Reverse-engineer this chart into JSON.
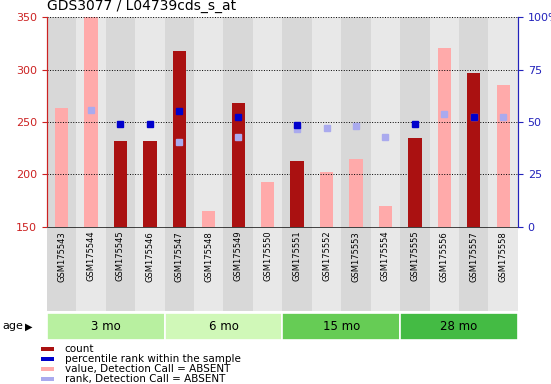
{
  "title": "GDS3077 / L04739cds_s_at",
  "samples": [
    "GSM175543",
    "GSM175544",
    "GSM175545",
    "GSM175546",
    "GSM175547",
    "GSM175548",
    "GSM175549",
    "GSM175550",
    "GSM175551",
    "GSM175552",
    "GSM175553",
    "GSM175554",
    "GSM175555",
    "GSM175556",
    "GSM175557",
    "GSM175558"
  ],
  "count": [
    null,
    null,
    232,
    232,
    318,
    null,
    268,
    null,
    213,
    null,
    null,
    null,
    235,
    null,
    297,
    null
  ],
  "count_absent": [
    263,
    350,
    null,
    null,
    null,
    165,
    null,
    193,
    null,
    202,
    215,
    170,
    null,
    321,
    null,
    285
  ],
  "percentile": [
    null,
    null,
    248,
    248,
    260,
    null,
    255,
    null,
    247,
    null,
    null,
    null,
    248,
    null,
    255,
    null
  ],
  "rank_absent": [
    null,
    261,
    null,
    null,
    231,
    null,
    236,
    null,
    243,
    244,
    246,
    236,
    null,
    258,
    255,
    255
  ],
  "ylim": [
    150,
    350
  ],
  "y2lim": [
    0,
    100
  ],
  "yticks": [
    150,
    200,
    250,
    300,
    350
  ],
  "y2ticks": [
    0,
    25,
    50,
    75,
    100
  ],
  "age_groups": [
    {
      "label": "3 mo",
      "indices": [
        0,
        1,
        2,
        3
      ],
      "color": "#b8f0a0"
    },
    {
      "label": "6 mo",
      "indices": [
        4,
        5,
        6,
        7
      ],
      "color": "#d0f8b8"
    },
    {
      "label": "15 mo",
      "indices": [
        8,
        9,
        10,
        11
      ],
      "color": "#6ed464"
    },
    {
      "label": "28 mo",
      "indices": [
        12,
        13,
        14,
        15
      ],
      "color": "#44bb44"
    }
  ],
  "count_color": "#aa1111",
  "count_absent_color": "#ffaaaa",
  "percentile_color": "#0000cc",
  "rank_absent_color": "#aaaaee",
  "col_bg_even": "#d8d8d8",
  "col_bg_odd": "#e8e8e8"
}
